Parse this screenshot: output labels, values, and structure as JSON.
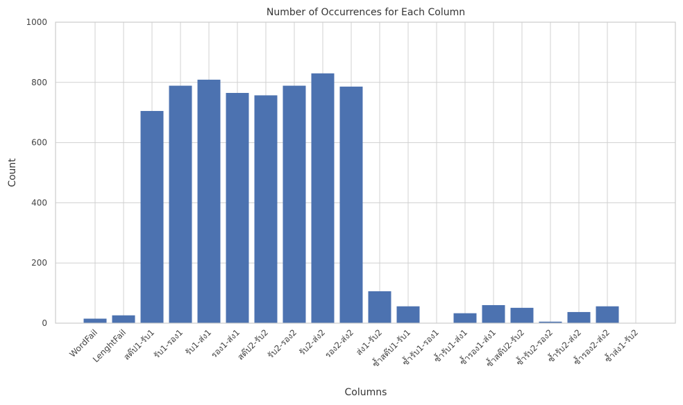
{
  "chart_data": {
    "type": "bar",
    "title": "Number of Occurrences for Each Column",
    "xlabel": "Columns",
    "ylabel": "Count",
    "ylim": [
      0,
      1000
    ],
    "yticks": [
      0,
      200,
      400,
      600,
      800,
      1000
    ],
    "grid": true,
    "bar_color": "#4c72b0",
    "categories": [
      "WordFail",
      "LenghtFail",
      "สต๊ป1-รับ1",
      "รับ1-รอง1",
      "รับ1-ส่ง1",
      "รอง1-ส่ง1",
      "สต๊ป2-รับ2",
      "รับ2-รอง2",
      "รับ2-ส่ง2",
      "รอง2-ส่ง2",
      "ส่ง1-รับ2",
      "ซ้ำสต๊ป1-รับ1",
      "ซ้ำรับ1-รอง1",
      "ซ้ำรับ1-ส่ง1",
      "ซ้ำรอง1-ส่ง1",
      "ซ้ำสต๊ป2-รับ2",
      "ซ้ำรับ2-รอง2",
      "ซ้ำรับ2-ส่ง2",
      "ซ้ำรอง2-ส่ง2",
      "ซ้ำส่ง1-รับ2"
    ],
    "values": [
      15,
      26,
      705,
      789,
      809,
      765,
      757,
      789,
      830,
      786,
      106,
      56,
      0,
      33,
      60,
      51,
      5,
      37,
      56,
      0
    ]
  }
}
